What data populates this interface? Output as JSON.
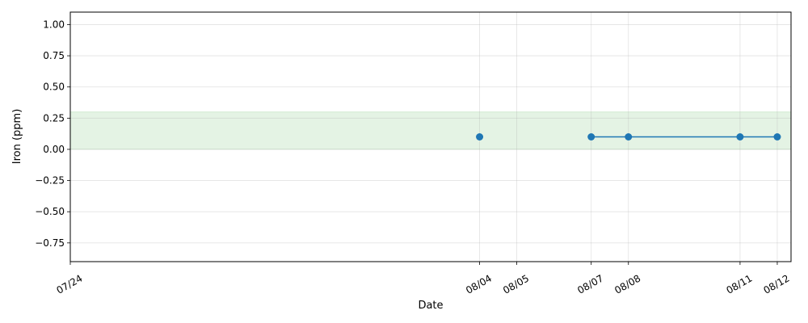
{
  "chart_data": {
    "type": "line",
    "xlabel": "Date",
    "ylabel": "Iron (ppm)",
    "x_ticks": [
      "07/24",
      "08/04",
      "08/05",
      "08/07",
      "08/08",
      "08/11",
      "08/12"
    ],
    "y_ticks": [
      "−0.75",
      "−0.50",
      "−0.25",
      "0.00",
      "0.25",
      "0.50",
      "0.75",
      "1.00"
    ],
    "xlim": [
      "07/24",
      "08/12"
    ],
    "ylim": [
      -0.9,
      1.1
    ],
    "grid": true,
    "reference_band": {
      "from": 0.0,
      "to": 0.3,
      "color": "#2ca02c"
    },
    "series": [
      {
        "color": "#1f77b4",
        "points": [
          {
            "x": "08/04",
            "y": 0.1
          },
          {
            "x": "08/07",
            "y": 0.1
          },
          {
            "x": "08/08",
            "y": 0.1
          },
          {
            "x": "08/11",
            "y": 0.1
          },
          {
            "x": "08/12",
            "y": 0.1
          }
        ],
        "line_segments": [
          [
            "08/07",
            "08/08"
          ],
          [
            "08/08",
            "08/11"
          ],
          [
            "08/11",
            "08/12"
          ]
        ]
      }
    ]
  }
}
